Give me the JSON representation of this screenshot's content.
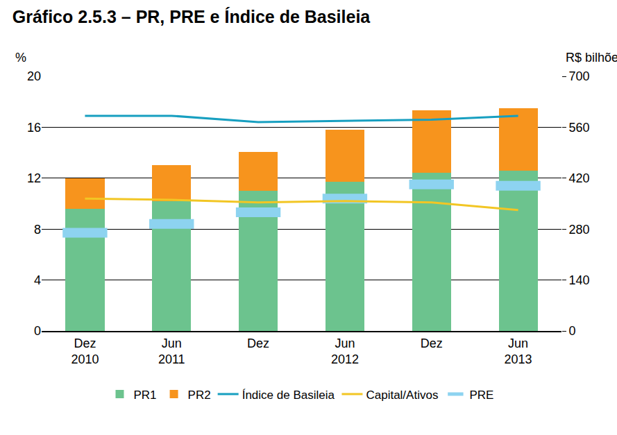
{
  "chart_data": {
    "type": "bar",
    "title": "Gráfico 2.5.3 – PR, PRE e Índice de Basileia",
    "ylabel": "%",
    "y2label": "R$ bilhões",
    "categories": [
      "Dez\n2010",
      "Jun\n2011",
      "Dez",
      "Jun\n2012",
      "Dez",
      "Jun\n2013"
    ],
    "stacked": true,
    "grid": true,
    "legend": "bottom",
    "ylim": [
      0,
      20
    ],
    "yticks": [
      0,
      4,
      8,
      12,
      16,
      20
    ],
    "y2lim": [
      0,
      700
    ],
    "y2ticks": [
      0,
      140,
      280,
      420,
      560,
      700
    ],
    "series": [
      {
        "name": "PR1",
        "type": "bar",
        "axis": "y2",
        "color": "#6cc38e",
        "values": [
          336,
          357,
          385,
          410,
          434,
          441
        ]
      },
      {
        "name": "PR2",
        "type": "bar",
        "axis": "y2",
        "color": "#f7941d",
        "values": [
          84,
          98,
          108,
          143,
          172,
          172
        ]
      },
      {
        "name": "Índice de Basileia",
        "type": "line",
        "color": "#179fc0",
        "values": [
          16.9,
          16.9,
          16.4,
          16.5,
          16.6,
          16.9
        ]
      },
      {
        "name": "Capital/Ativos",
        "type": "line",
        "color": "#f2c624",
        "values": [
          10.4,
          10.3,
          10.1,
          10.2,
          10.1,
          9.5
        ]
      },
      {
        "name": "PRE",
        "type": "scatter",
        "axis": "y2",
        "marker": "dash",
        "color": "#8dd3f0",
        "values": [
          270,
          294,
          326,
          364,
          403,
          399
        ]
      }
    ]
  }
}
